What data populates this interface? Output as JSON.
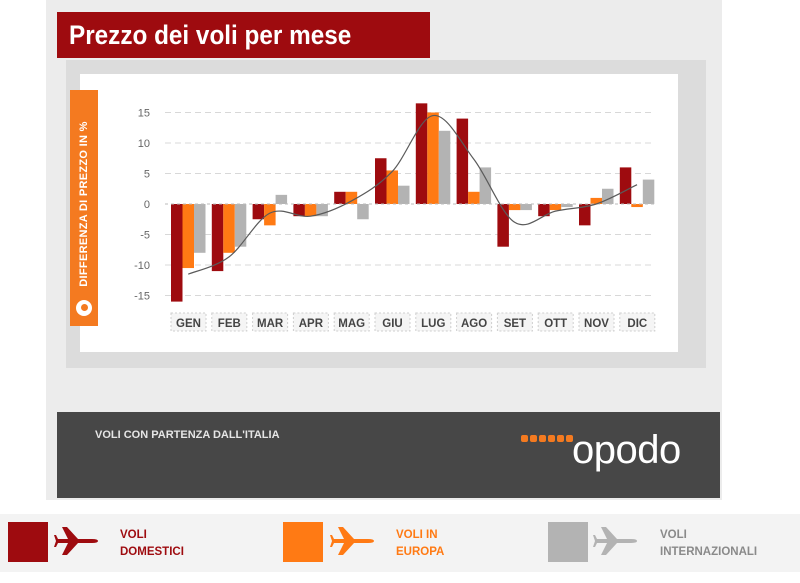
{
  "title": "Prezzo dei voli per mese",
  "footer": {
    "caption": "VOLI CON PARTENZA DALL'ITALIA",
    "brand": "opodo"
  },
  "colors": {
    "domestic": "#9e0b0f",
    "europe": "#ff7a14",
    "international": "#b3b3b3"
  },
  "legend": [
    {
      "line1": "VOLI",
      "line2": "DOMESTICI",
      "color": "#9e0b0f",
      "icon": "airplane-icon"
    },
    {
      "line1": "VOLI IN",
      "line2": "EUROPA",
      "color": "#ff7a14",
      "icon": "airplane-icon"
    },
    {
      "line1": "VOLI",
      "line2": "INTERNAZIONALI",
      "color": "#b3b3b3",
      "icon": "airplane-icon"
    }
  ],
  "chart_data": {
    "type": "bar",
    "title": "Prezzo dei voli per mese",
    "ylabel": "DIFFERENZA DI PREZZO IN %",
    "xlabel": "",
    "ylim": [
      -15,
      15
    ],
    "yticks": [
      15,
      10,
      5,
      0,
      -5,
      -10,
      -15
    ],
    "categories": [
      "GEN",
      "FEB",
      "MAR",
      "APR",
      "MAG",
      "GIU",
      "LUG",
      "AGO",
      "SET",
      "OTT",
      "NOV",
      "DIC"
    ],
    "series": [
      {
        "name": "VOLI DOMESTICI",
        "values": [
          -16,
          -11,
          -2.5,
          -2,
          2,
          7.5,
          16.5,
          14,
          -7,
          -2,
          -3.5,
          6
        ]
      },
      {
        "name": "VOLI IN EUROPA",
        "values": [
          -10.5,
          -8,
          -3.5,
          -2,
          2,
          5.5,
          15,
          2,
          -1,
          -1,
          1,
          -0.5
        ]
      },
      {
        "name": "VOLI INTERNAZIONALI",
        "values": [
          -8,
          -7,
          1.5,
          -2,
          -2.5,
          3,
          12,
          6,
          -1,
          -0.5,
          2.5,
          4
        ]
      }
    ],
    "trend_line": true,
    "grid": true
  }
}
